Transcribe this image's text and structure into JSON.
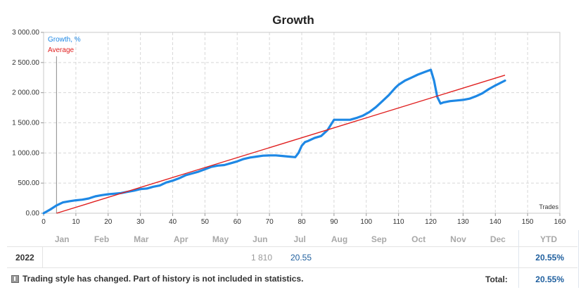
{
  "chart_data": {
    "type": "line",
    "title": "Growth",
    "xlabel": "Trades",
    "xlim": [
      0,
      160
    ],
    "ylim": [
      0,
      3000
    ],
    "x_ticks": [
      "0",
      "10",
      "20",
      "30",
      "40",
      "50",
      "60",
      "70",
      "80",
      "90",
      "100",
      "110",
      "120",
      "130",
      "140",
      "150",
      "160"
    ],
    "y_ticks": [
      "0.00",
      "500.00",
      "1 000.00",
      "1 500.00",
      "2 000.00",
      "2 500.00",
      "3 000.00"
    ],
    "grid": true,
    "legend_position": "top-left",
    "series": [
      {
        "name": "Growth, %",
        "color": "#1e88e5",
        "x": [
          0,
          2,
          4,
          6,
          8,
          10,
          12,
          14,
          16,
          18,
          20,
          22,
          24,
          26,
          28,
          30,
          32,
          34,
          36,
          38,
          40,
          42,
          44,
          46,
          48,
          50,
          52,
          54,
          56,
          58,
          60,
          62,
          64,
          66,
          68,
          70,
          72,
          74,
          76,
          78,
          79,
          80,
          81,
          82,
          84,
          86,
          88,
          90,
          91,
          93,
          95,
          97,
          99,
          101,
          103,
          105,
          107,
          109,
          110,
          112,
          114,
          116,
          118,
          120,
          121,
          122,
          123,
          124,
          126,
          128,
          130,
          132,
          134,
          136,
          138,
          140,
          143
        ],
        "y": [
          0,
          60,
          130,
          180,
          200,
          215,
          225,
          245,
          280,
          300,
          315,
          325,
          335,
          355,
          375,
          400,
          410,
          440,
          460,
          510,
          540,
          580,
          630,
          660,
          690,
          730,
          770,
          790,
          800,
          830,
          860,
          900,
          925,
          940,
          955,
          960,
          960,
          950,
          940,
          930,
          1000,
          1120,
          1180,
          1200,
          1250,
          1280,
          1380,
          1550,
          1550,
          1550,
          1550,
          1580,
          1620,
          1680,
          1760,
          1860,
          1960,
          2080,
          2130,
          2200,
          2250,
          2300,
          2340,
          2380,
          2200,
          1930,
          1820,
          1840,
          1860,
          1870,
          1880,
          1900,
          1940,
          1990,
          2060,
          2120,
          2200
        ]
      },
      {
        "name": "Average",
        "color": "#e02020",
        "x": [
          4,
          143
        ],
        "y": [
          0,
          2290
        ]
      }
    ]
  },
  "table": {
    "months": [
      "Jan",
      "Feb",
      "Mar",
      "Apr",
      "May",
      "Jun",
      "Jul",
      "Aug",
      "Sep",
      "Oct",
      "Nov",
      "Dec"
    ],
    "ytd_header": "YTD",
    "year": "2022",
    "jun_value": "1 810",
    "jul_value": "20.55",
    "ytd_value": "20.55%",
    "note_icon": "info-square-icon",
    "note_text": "Trading style has changed. Part of history is not included in statistics.",
    "total_label": "Total:",
    "total_value": "20.55%"
  }
}
